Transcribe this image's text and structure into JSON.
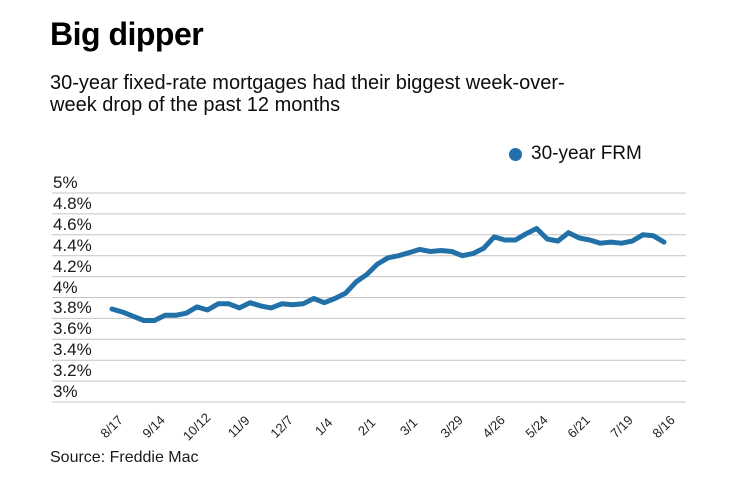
{
  "header": {
    "title": "Big dipper",
    "subtitle_line1": "30-year fixed-rate mortgages had their biggest week-over-",
    "subtitle_line2": "week drop of the past 12 months"
  },
  "legend": {
    "label": "30-year FRM",
    "color": "#2270a8"
  },
  "source": "Source: Freddie Mac",
  "colors": {
    "line": "#2270a8",
    "gridline": "#c4c4c4",
    "text": "#1a1a1a",
    "background": "#ffffff"
  },
  "chart_data": {
    "type": "line",
    "title": "Big dipper",
    "subtitle": "30-year fixed-rate mortgages had their biggest week-over-week drop of the past 12 months",
    "xlabel": "",
    "ylabel": "",
    "ylim": [
      3,
      5
    ],
    "grid": true,
    "legend_position": "top-right",
    "y_ticks": [
      {
        "value": 5,
        "label": "5%"
      },
      {
        "value": 4.8,
        "label": "4.8%"
      },
      {
        "value": 4.6,
        "label": "4.6%"
      },
      {
        "value": 4.4,
        "label": "4.4%"
      },
      {
        "value": 4.2,
        "label": "4.2%"
      },
      {
        "value": 4,
        "label": "4%"
      },
      {
        "value": 3.8,
        "label": "3.8%"
      },
      {
        "value": 3.6,
        "label": "3.6%"
      },
      {
        "value": 3.4,
        "label": "3.4%"
      },
      {
        "value": 3.2,
        "label": "3.2%"
      },
      {
        "value": 3,
        "label": "3%"
      }
    ],
    "x_tick_labels": [
      {
        "index": 0,
        "label": "8/17"
      },
      {
        "index": 4,
        "label": "9/14"
      },
      {
        "index": 8,
        "label": "10/12"
      },
      {
        "index": 12,
        "label": "11/9"
      },
      {
        "index": 16,
        "label": "12/7"
      },
      {
        "index": 20,
        "label": "1/4"
      },
      {
        "index": 24,
        "label": "2/1"
      },
      {
        "index": 28,
        "label": "3/1"
      },
      {
        "index": 32,
        "label": "3/29"
      },
      {
        "index": 36,
        "label": "4/26"
      },
      {
        "index": 40,
        "label": "5/24"
      },
      {
        "index": 44,
        "label": "6/21"
      },
      {
        "index": 48,
        "label": "7/19"
      },
      {
        "index": 52,
        "label": "8/16"
      }
    ],
    "series": [
      {
        "name": "30-year FRM",
        "color": "#2270a8",
        "values": [
          3.89,
          3.86,
          3.82,
          3.78,
          3.78,
          3.83,
          3.83,
          3.85,
          3.91,
          3.88,
          3.94,
          3.94,
          3.9,
          3.95,
          3.92,
          3.9,
          3.94,
          3.93,
          3.94,
          3.99,
          3.95,
          3.99,
          4.04,
          4.15,
          4.22,
          4.32,
          4.38,
          4.4,
          4.43,
          4.46,
          4.44,
          4.45,
          4.44,
          4.4,
          4.42,
          4.47,
          4.58,
          4.55,
          4.55,
          4.61,
          4.66,
          4.56,
          4.54,
          4.62,
          4.57,
          4.55,
          4.52,
          4.53,
          4.52,
          4.54,
          4.6,
          4.59,
          4.53
        ]
      }
    ]
  }
}
